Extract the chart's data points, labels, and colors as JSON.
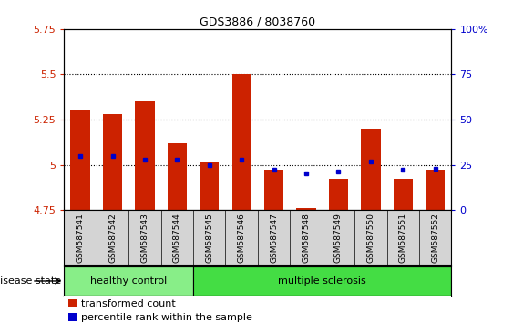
{
  "title": "GDS3886 / 8038760",
  "samples": [
    "GSM587541",
    "GSM587542",
    "GSM587543",
    "GSM587544",
    "GSM587545",
    "GSM587546",
    "GSM587547",
    "GSM587548",
    "GSM587549",
    "GSM587550",
    "GSM587551",
    "GSM587552"
  ],
  "bar_top": [
    5.3,
    5.28,
    5.35,
    5.12,
    5.02,
    5.5,
    4.97,
    4.76,
    4.92,
    5.2,
    4.92,
    4.97
  ],
  "bar_bottom": 4.75,
  "percentile": [
    30,
    30,
    28,
    28,
    25,
    28,
    22,
    20,
    21,
    27,
    22,
    23
  ],
  "ylim_left": [
    4.75,
    5.75
  ],
  "ylim_right": [
    0,
    100
  ],
  "yticks_left": [
    4.75,
    5.0,
    5.25,
    5.5,
    5.75
  ],
  "ytick_labels_left": [
    "4.75",
    "5",
    "5.25",
    "5.5",
    "5.75"
  ],
  "yticks_right": [
    0,
    25,
    50,
    75,
    100
  ],
  "ytick_labels_right": [
    "0",
    "25",
    "50",
    "75",
    "100%"
  ],
  "bar_color": "#cc2200",
  "dot_color": "#0000cc",
  "healthy_color": "#88ee88",
  "ms_color": "#44dd44",
  "healthy_label": "healthy control",
  "ms_label": "multiple sclerosis",
  "healthy_count": 4,
  "ms_count": 8,
  "disease_state_label": "disease state",
  "legend_bar_label": "transformed count",
  "legend_dot_label": "percentile rank within the sample",
  "background_gray": "#d4d4d4",
  "dotted_line_y": [
    5.0,
    5.25,
    5.5
  ]
}
